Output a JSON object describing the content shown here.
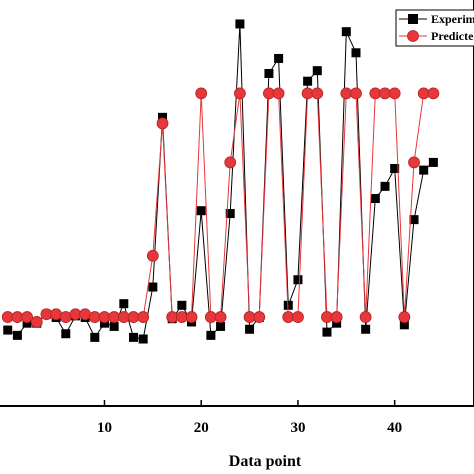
{
  "chart_data": {
    "type": "line",
    "title": "",
    "xlabel": "Data point",
    "ylabel": "",
    "x_ticks": [
      "10",
      "20",
      "30",
      "40"
    ],
    "xlim": [
      -0.8,
      48.2
    ],
    "ylim": [
      0,
      100
    ],
    "grid": false,
    "legend": {
      "placement": "top-right",
      "entries": [
        "Experim",
        "Predicte"
      ]
    },
    "x": [
      0,
      1,
      2,
      3,
      4,
      5,
      6,
      7,
      8,
      9,
      10,
      11,
      12,
      13,
      14,
      15,
      16,
      17,
      18,
      19,
      20,
      21,
      22,
      23,
      24,
      25,
      26,
      27,
      28,
      29,
      30,
      31,
      32,
      33,
      34,
      35,
      36,
      37,
      38,
      39,
      40,
      41,
      42,
      43,
      44
    ],
    "series": [
      {
        "name": "Experim",
        "color": "#000000",
        "marker": "square",
        "values": [
          18.7,
          17.4,
          20.4,
          20.4,
          22.6,
          21.8,
          17.8,
          22.2,
          21.8,
          16.9,
          20.4,
          19.6,
          25.2,
          16.9,
          16.5,
          29.3,
          71.1,
          21.5,
          24.8,
          20.7,
          48.1,
          17.4,
          19.6,
          47.4,
          94.1,
          18.9,
          21.8,
          81.9,
          85.6,
          24.8,
          31.1,
          80.0,
          82.6,
          18.2,
          20.4,
          92.2,
          87.0,
          18.9,
          51.1,
          54.1,
          58.5,
          20.0,
          45.9,
          58.1,
          60.0
        ]
      },
      {
        "name": "Predicte",
        "color": "#e8373a",
        "marker": "circle",
        "values": [
          21.9,
          21.9,
          21.9,
          20.7,
          22.6,
          22.6,
          21.9,
          22.6,
          22.6,
          21.9,
          21.9,
          21.9,
          21.9,
          21.9,
          21.9,
          37.0,
          69.6,
          21.9,
          21.9,
          21.9,
          77.0,
          21.9,
          21.9,
          60.0,
          77.0,
          21.9,
          21.9,
          77.0,
          77.0,
          21.9,
          21.9,
          77.0,
          77.0,
          21.9,
          21.9,
          77.0,
          77.0,
          21.9,
          77.0,
          77.0,
          77.0,
          21.9,
          60.0,
          77.0,
          77.0
        ]
      }
    ]
  }
}
